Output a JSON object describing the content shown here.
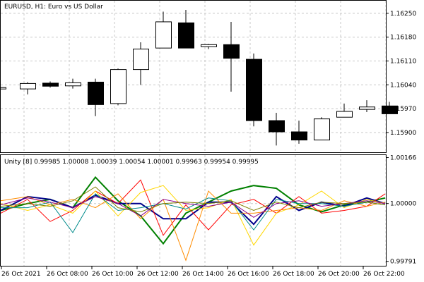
{
  "main_chart": {
    "title": "EURUSD, H1:  Euro vs US Dollar",
    "price_labels": [
      "1.16250",
      "1.16180",
      "1.16110",
      "1.16040",
      "1.15970",
      "1.15900"
    ],
    "price_ticks": [
      1.1625,
      1.1618,
      1.1611,
      1.1604,
      1.1597,
      1.159
    ],
    "ylim": [
      1.15842,
      1.16287
    ],
    "candles": [
      {
        "o": 1.1603,
        "h": 1.1603,
        "l": 1.1603,
        "c": 1.16032
      },
      {
        "o": 1.16028,
        "h": 1.16048,
        "l": 1.16012,
        "c": 1.16044
      },
      {
        "o": 1.16045,
        "h": 1.1605,
        "l": 1.16032,
        "c": 1.16036
      },
      {
        "o": 1.16037,
        "h": 1.16058,
        "l": 1.16029,
        "c": 1.16046
      },
      {
        "o": 1.16048,
        "h": 1.16058,
        "l": 1.15948,
        "c": 1.15982
      },
      {
        "o": 1.15985,
        "h": 1.16088,
        "l": 1.1598,
        "c": 1.16085
      },
      {
        "o": 1.16085,
        "h": 1.16165,
        "l": 1.1604,
        "c": 1.16145
      },
      {
        "o": 1.16148,
        "h": 1.16255,
        "l": 1.16148,
        "c": 1.16225
      },
      {
        "o": 1.16222,
        "h": 1.1626,
        "l": 1.16148,
        "c": 1.16148
      },
      {
        "o": 1.16152,
        "h": 1.1616,
        "l": 1.16145,
        "c": 1.16158
      },
      {
        "o": 1.16158,
        "h": 1.16225,
        "l": 1.1602,
        "c": 1.16118
      },
      {
        "o": 1.16115,
        "h": 1.16132,
        "l": 1.15918,
        "c": 1.15935
      },
      {
        "o": 1.15935,
        "h": 1.15958,
        "l": 1.15862,
        "c": 1.15902
      },
      {
        "o": 1.15902,
        "h": 1.15935,
        "l": 1.15867,
        "c": 1.15878
      },
      {
        "o": 1.15878,
        "h": 1.15945,
        "l": 1.15878,
        "c": 1.1594
      },
      {
        "o": 1.15945,
        "h": 1.15985,
        "l": 1.15945,
        "c": 1.15962
      },
      {
        "o": 1.15968,
        "h": 1.15995,
        "l": 1.1596,
        "c": 1.15975
      },
      {
        "o": 1.15978,
        "h": 1.1599,
        "l": 1.15955,
        "c": 1.15955
      }
    ],
    "colors": {
      "up_fill": "#ffffff",
      "down_fill": "#000000",
      "border": "#000000"
    }
  },
  "indicator": {
    "title": "Unity [8] 0.99985 1.00008 1.00039 1.00054 1.00001 0.99963 0.99954 0.99995",
    "labels": [
      "1.00166",
      "1.00000",
      "0.99791"
    ],
    "ticks": [
      1.00166,
      1.0,
      0.99791
    ],
    "ylim": [
      0.99775,
      1.00175
    ],
    "series": [
      {
        "color": "#008000",
        "width": 2,
        "values": [
          0.99975,
          1.0,
          1.00015,
          0.99985,
          1.00095,
          1.0001,
          0.99955,
          0.99855,
          0.99965,
          1.00005,
          1.00045,
          1.00065,
          1.00055,
          0.99995,
          0.9997,
          0.99995,
          1.00005,
          1.0002
        ]
      },
      {
        "color": "#00008b",
        "width": 2,
        "values": [
          0.99975,
          1.00025,
          1.00015,
          0.99985,
          1.0003,
          1.0,
          1.0,
          0.99945,
          0.99945,
          1.00005,
          1.00005,
          0.99925,
          1.00025,
          0.99975,
          1.00005,
          0.9999,
          1.0002,
          1.0
        ]
      },
      {
        "color": "#ff0000",
        "width": 1,
        "values": [
          0.99965,
          1.00015,
          0.99935,
          0.99975,
          1.00045,
          1.0,
          1.00085,
          0.99885,
          0.99995,
          0.99905,
          0.99995,
          1.00015,
          0.99965,
          1.00025,
          0.99965,
          0.99975,
          0.9999,
          1.00035
        ]
      },
      {
        "color": "#ffd700",
        "width": 1,
        "values": [
          1.0,
          0.99975,
          0.99995,
          0.99965,
          1.00045,
          0.99955,
          1.0004,
          1.00065,
          0.99975,
          0.99985,
          1.00015,
          0.9985,
          0.99965,
          0.99995,
          1.00045,
          0.99985,
          1.00015,
          1.0
        ]
      },
      {
        "color": "#ff8c00",
        "width": 1,
        "values": [
          1.0001,
          1.00025,
          0.99995,
          1.00015,
          0.99985,
          1.00035,
          0.99945,
          1.00015,
          0.99795,
          1.00045,
          0.99965,
          0.99965,
          0.99975,
          0.99985,
          0.99975,
          1.0001,
          0.9999,
          1.00005
        ]
      },
      {
        "color": "#008b8b",
        "width": 1,
        "values": [
          0.99985,
          0.99985,
          1.00005,
          0.99895,
          1.00035,
          0.99975,
          0.99985,
          1.0,
          0.9998,
          1.0002,
          1.0001,
          0.99905,
          1.00015,
          1.0,
          1.0,
          0.9999,
          1.00005,
          0.99995
        ]
      },
      {
        "color": "#8b008b",
        "width": 1,
        "values": [
          0.99995,
          1.0002,
          1.00005,
          0.99985,
          1.00025,
          1.0,
          0.99955,
          1.00015,
          1.0,
          0.9999,
          1.00005,
          0.9995,
          1.0,
          1.0001,
          0.9999,
          1.0,
          1.0001,
          1.0
        ]
      },
      {
        "color": "#808000",
        "width": 1,
        "values": [
          0.9999,
          1.0,
          0.9999,
          1.0001,
          1.0006,
          0.99985,
          0.9997,
          1.0,
          1.00005,
          1.0,
          1.0001,
          0.99975,
          1.00005,
          0.99985,
          1.00005,
          1.0,
          1.00005,
          0.99995
        ]
      }
    ]
  },
  "time_axis": {
    "labels": [
      "26 Oct 2021",
      "26 Oct 08:00",
      "26 Oct 10:00",
      "26 Oct 12:00",
      "26 Oct 14:00",
      "26 Oct 16:00",
      "26 Oct 18:00",
      "26 Oct 20:00",
      "26 Oct 22:00"
    ]
  }
}
